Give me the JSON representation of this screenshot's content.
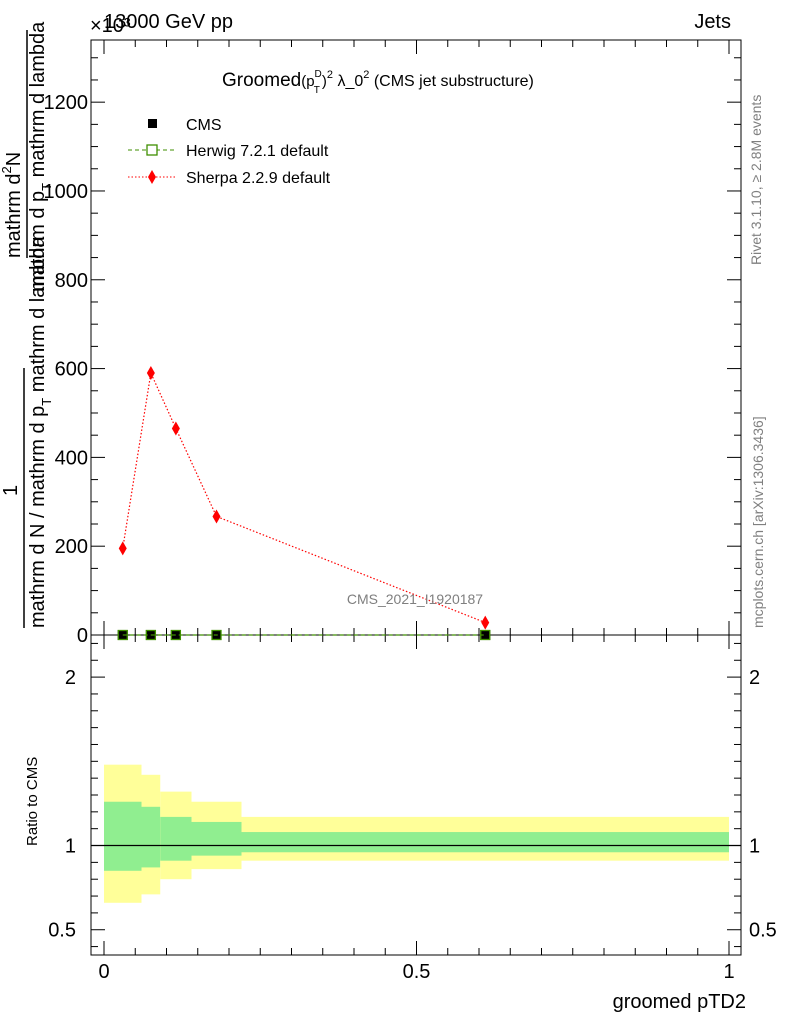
{
  "header": {
    "left": "13000 GeV pp",
    "right": "Jets",
    "exponent": "×10³"
  },
  "side_labels": {
    "rivet": "Rivet 3.1.10, ≥ 2.8M events",
    "mcplots": "mcplots.cern.ch [arXiv:1306.3436]"
  },
  "chart_data": [
    {
      "type": "line",
      "title": "Groomed(p_T^D)^2 λ_0^2 (CMS jet substructure)",
      "title_parts": {
        "lead": "Groomed",
        "p": "(p",
        "sup_d": "D",
        "sub_t": "T",
        "close": ")",
        "sq": "2",
        "lambda": " λ_0",
        "sq2": "2",
        "tail": " (CMS jet substructure)"
      },
      "ylabel": {
        "numerator": "1",
        "denominator": "mathrm d N / mathrm d p_T mathrm d lambda",
        "numerator_top": "mathrm d²N",
        "denominator_top": "mathrm d p_T mathrm d lambda"
      },
      "ylabel_lines": {
        "top_num": "mathrm d",
        "top_num_sup": "2",
        "top_num_tail": "N",
        "top_den_a": "mathrm d p",
        "top_den_sub": "T",
        "top_den_b": " mathrm d lambda",
        "one": "1",
        "bottom_den": "mathrm d N / mathrm d p",
        "bottom_den_sub": "T",
        "bottom_den_b": " mathrm d lambda"
      },
      "watermark": "CMS_2021_I1920187",
      "y_scale_factor": 1000,
      "xlim": [
        0,
        1
      ],
      "ylim": [
        0,
        1340
      ],
      "yticks": [
        0,
        200,
        400,
        600,
        800,
        1000,
        1200
      ],
      "ytick_labels": [
        "0",
        "200",
        "400",
        "600",
        "800",
        "1000",
        "1200"
      ],
      "legend_position": "top-left",
      "series": [
        {
          "name": "CMS",
          "color": "#000000",
          "marker": "square",
          "x": [
            0.03,
            0.075,
            0.115,
            0.18,
            0.61
          ],
          "y": [
            0,
            0,
            0,
            0,
            0
          ]
        },
        {
          "name": "Herwig 7.2.1 default",
          "color": "#3f8f00",
          "marker": "open-square",
          "line": "dashed",
          "x": [
            0.03,
            0.075,
            0.115,
            0.18,
            0.61
          ],
          "y": [
            0,
            0,
            0,
            0,
            0
          ]
        },
        {
          "name": "Sherpa 2.2.9 default",
          "color": "#ff0000",
          "marker": "diamond",
          "line": "dotted",
          "x": [
            0.03,
            0.075,
            0.115,
            0.18,
            0.61
          ],
          "y": [
            195,
            590,
            465,
            267,
            28
          ]
        }
      ]
    },
    {
      "type": "area",
      "ylabel": "Ratio to CMS",
      "xlabel": "groomed pTD2",
      "xlim": [
        0,
        1
      ],
      "ylim": [
        0.35,
        2.25
      ],
      "yticks": [
        0.5,
        1,
        2
      ],
      "ytick_labels": [
        "0.5",
        "1",
        "2"
      ],
      "xticks": [
        0,
        0.5,
        1
      ],
      "xtick_labels": [
        "0",
        "0.5",
        "1"
      ],
      "reference_line": 1,
      "bands": [
        {
          "x0": 0.0,
          "x1": 0.06,
          "inner": [
            0.85,
            1.26
          ],
          "outer": [
            0.66,
            1.48
          ]
        },
        {
          "x0": 0.06,
          "x1": 0.09,
          "inner": [
            0.87,
            1.23
          ],
          "outer": [
            0.71,
            1.42
          ]
        },
        {
          "x0": 0.09,
          "x1": 0.14,
          "inner": [
            0.91,
            1.17
          ],
          "outer": [
            0.8,
            1.32
          ]
        },
        {
          "x0": 0.14,
          "x1": 0.22,
          "inner": [
            0.94,
            1.14
          ],
          "outer": [
            0.86,
            1.26
          ]
        },
        {
          "x0": 0.22,
          "x1": 1.0,
          "inner": [
            0.96,
            1.08
          ],
          "outer": [
            0.91,
            1.17
          ]
        }
      ],
      "colors": {
        "inner": "#90ee90",
        "outer": "#ffff99"
      }
    }
  ]
}
